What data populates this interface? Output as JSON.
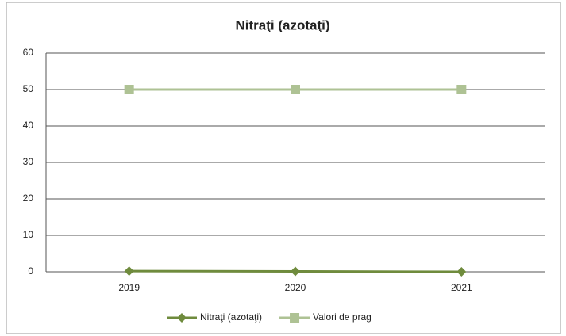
{
  "chart_data": {
    "type": "line",
    "title": "Nitraţi (azotaţi)",
    "categories": [
      "2019",
      "2020",
      "2021"
    ],
    "series": [
      {
        "name": "Nitraţi (azotaţi)",
        "color": "#6f8b3d",
        "marker": "diamond",
        "values": [
          0.2,
          0.1,
          0
        ]
      },
      {
        "name": "Valori de prag",
        "color": "#aec294",
        "marker": "square",
        "values": [
          50,
          50,
          50
        ]
      }
    ],
    "ylim": [
      0,
      60
    ],
    "yticks": [
      0,
      10,
      20,
      30,
      40,
      50,
      60
    ],
    "grid": true,
    "legend": "bottom"
  }
}
